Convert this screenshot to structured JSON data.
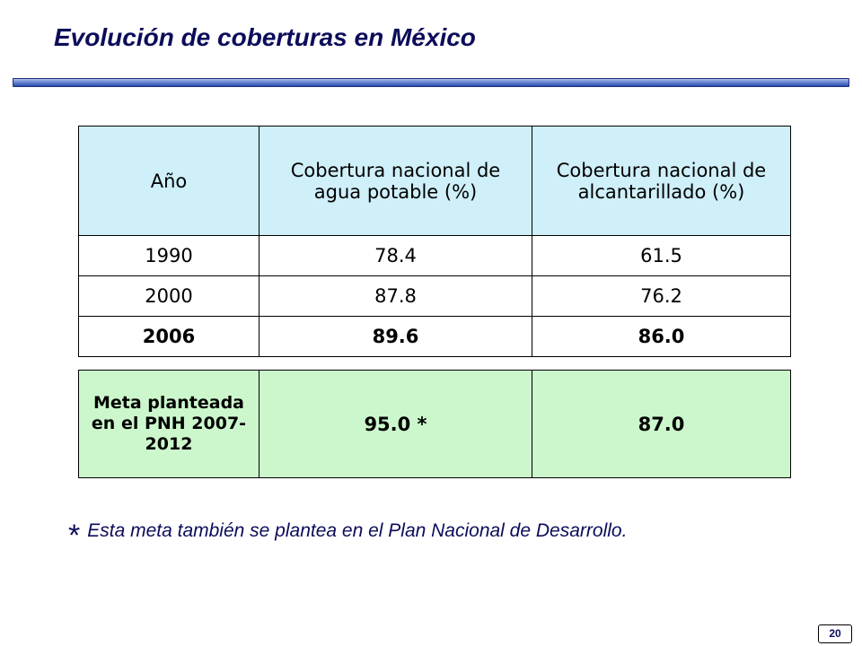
{
  "slide": {
    "title": "Evolución de coberturas en México",
    "page_number": "20"
  },
  "table": {
    "headers": [
      "Año",
      "Cobertura nacional de agua potable (%)",
      "Cobertura nacional de alcantarillado (%)"
    ],
    "rows": [
      [
        "1990",
        "78.4",
        "61.5"
      ],
      [
        "2000",
        "87.8",
        "76.2"
      ],
      [
        "2006",
        "89.6",
        "86.0"
      ]
    ]
  },
  "goal": {
    "label": "Meta planteada en el PNH 2007-2012",
    "water": "95.0 *",
    "sewer": "87.0"
  },
  "footnote": {
    "marker": "*",
    "text": "Esta meta también se plantea en el Plan Nacional de Desarrollo."
  }
}
